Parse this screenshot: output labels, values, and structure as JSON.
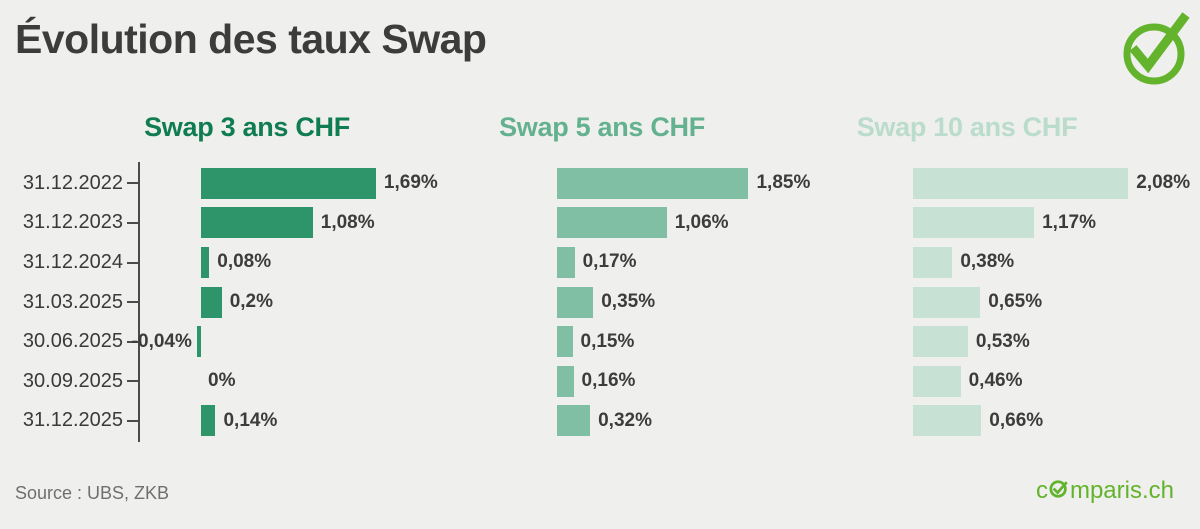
{
  "page": {
    "title": "Évolution des taux Swap",
    "source": "Source : UBS, ZKB",
    "background": "#efefee",
    "accent_green": "#64b32c",
    "text_dark": "#3c3c3b",
    "axis_color": "#4b4b4b"
  },
  "brand": {
    "text_before_o": "c",
    "text_after_o": "mparis.ch",
    "full_name": "comparis.ch",
    "color": "#64b32c"
  },
  "icons": {
    "badge": "circle-check-icon",
    "logo_o": "circle-check-small-icon"
  },
  "chart_data": {
    "type": "bar",
    "orientation": "horizontal",
    "unit": "%",
    "grid": false,
    "legend_position": "column-headers-top",
    "categories": [
      "31.12.2022",
      "31.12.2023",
      "31.12.2024",
      "31.03.2025",
      "30.06.2025",
      "30.09.2025",
      "31.12.2025"
    ],
    "series": [
      {
        "name": "Swap 3 ans CHF",
        "color": "#2e9469",
        "header_color": "#0f7c51",
        "values": [
          1.69,
          1.08,
          0.08,
          0.2,
          -0.04,
          0,
          0.14
        ],
        "labels": [
          "1,69%",
          "1,08%",
          "0,08%",
          "0,2%",
          "-0,04%",
          "0%",
          "0,14%"
        ]
      },
      {
        "name": "Swap 5 ans CHF",
        "color": "#80bfa3",
        "header_color": "#63b18e",
        "values": [
          1.85,
          1.06,
          0.17,
          0.35,
          0.15,
          0.16,
          0.32
        ],
        "labels": [
          "1,85%",
          "1,06%",
          "0,17%",
          "0,35%",
          "0,15%",
          "0,16%",
          "0,32%"
        ]
      },
      {
        "name": "Swap 10 ans CHF",
        "color": "#c7e1d4",
        "header_color": "#badccc",
        "values": [
          2.08,
          1.17,
          0.38,
          0.65,
          0.53,
          0.46,
          0.66
        ],
        "labels": [
          "2,08%",
          "1,17%",
          "0,38%",
          "0,65%",
          "0,53%",
          "0,46%",
          "0,66%"
        ]
      }
    ],
    "xlim": [
      -0.1,
      2.2
    ],
    "value_axis_hidden": true
  }
}
